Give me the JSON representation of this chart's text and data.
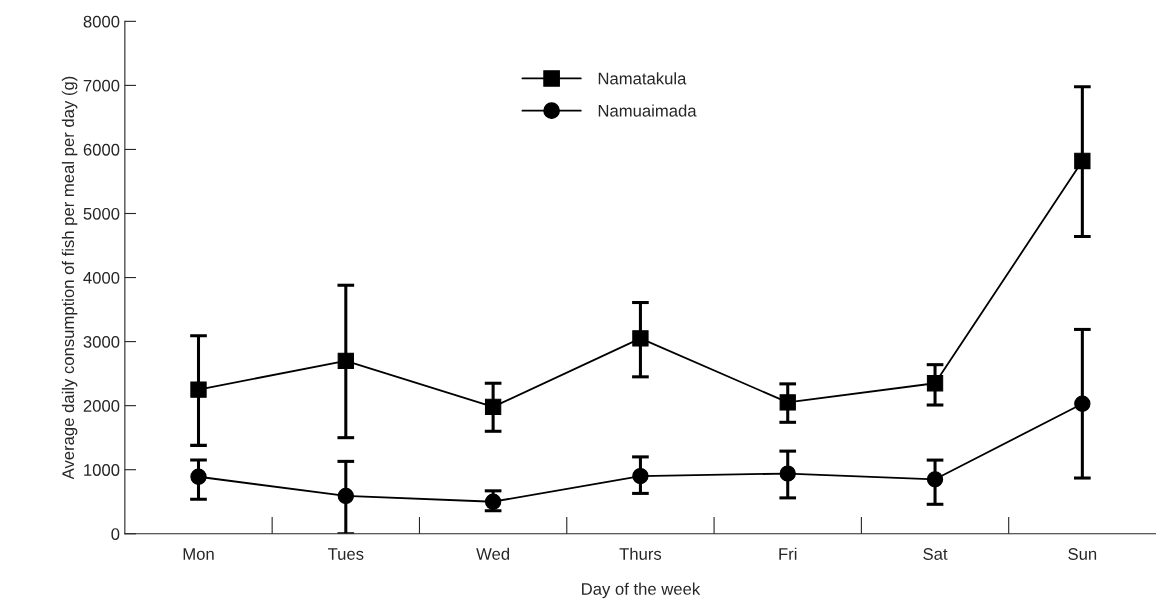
{
  "chart_data": {
    "type": "line",
    "xlabel": "Day of the week",
    "ylabel": "Average daily consumption of fish per meal per day (g)",
    "categories": [
      "Mon",
      "Tues",
      "Wed",
      "Thurs",
      "Fri",
      "Sat",
      "Sun"
    ],
    "ylim": [
      0,
      8000
    ],
    "yticks": [
      0,
      1000,
      2000,
      3000,
      4000,
      5000,
      6000,
      7000,
      8000
    ],
    "grid": false,
    "legend": "top",
    "line_style": "solid",
    "series": [
      {
        "name": "Namatakula",
        "color": "#000000",
        "marker": "square",
        "values": [
          2250,
          2700,
          1980,
          3050,
          2050,
          2350,
          5820
        ],
        "errors": [
          [
            1380,
            3090
          ],
          [
            1500,
            3880
          ],
          [
            1600,
            2350
          ],
          [
            2450,
            3610
          ],
          [
            1740,
            2340
          ],
          [
            2010,
            2640
          ],
          [
            4640,
            6980
          ]
        ]
      },
      {
        "name": "Namuaimada",
        "color": "#000000",
        "marker": "circle",
        "values": [
          890,
          590,
          500,
          900,
          940,
          850,
          2030
        ],
        "errors": [
          [
            540,
            1150
          ],
          [
            0,
            1130
          ],
          [
            360,
            670
          ],
          [
            630,
            1200
          ],
          [
            560,
            1290
          ],
          [
            460,
            1150
          ],
          [
            870,
            3190
          ]
        ]
      }
    ]
  }
}
